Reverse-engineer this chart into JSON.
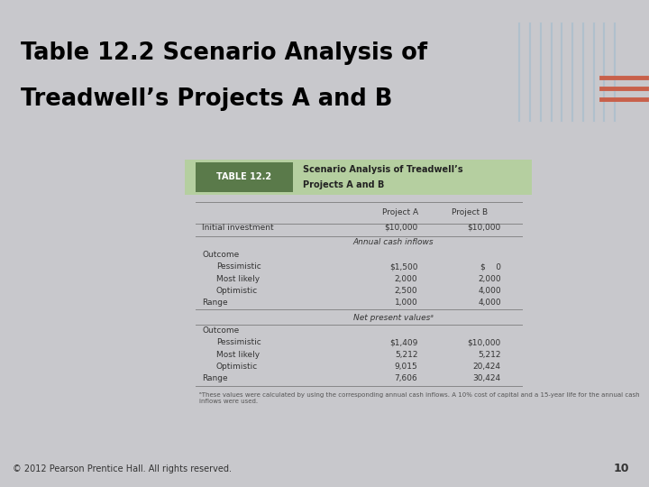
{
  "title_line1": "Table 12.2 Scenario Analysis of",
  "title_line2": "Treadwell’s Projects A and B",
  "table_label": "TABLE 12.2",
  "table_subtitle1": "Scenario Analysis of Treadwell’s",
  "table_subtitle2": "Projects A and B",
  "slide_bg": "#c8c8cc",
  "header_bar_color": "#d4843a",
  "title_bg": "#ffffff",
  "table_header_bg": "#b5cfa0",
  "table_label_bg": "#5a7a4a",
  "table_body_bg": "#ffffff",
  "line_color": "#888888",
  "text_color": "#333333",
  "footnote_color": "#555555",
  "footer_text": "© 2012 Pearson Prentice Hall. All rights reserved.",
  "footer_page": "10",
  "footnote": "ᵃThese values were calculated by using the corresponding annual cash inflows. A 10% cost of capital and a 15-year life for the annual cash inflows were used."
}
